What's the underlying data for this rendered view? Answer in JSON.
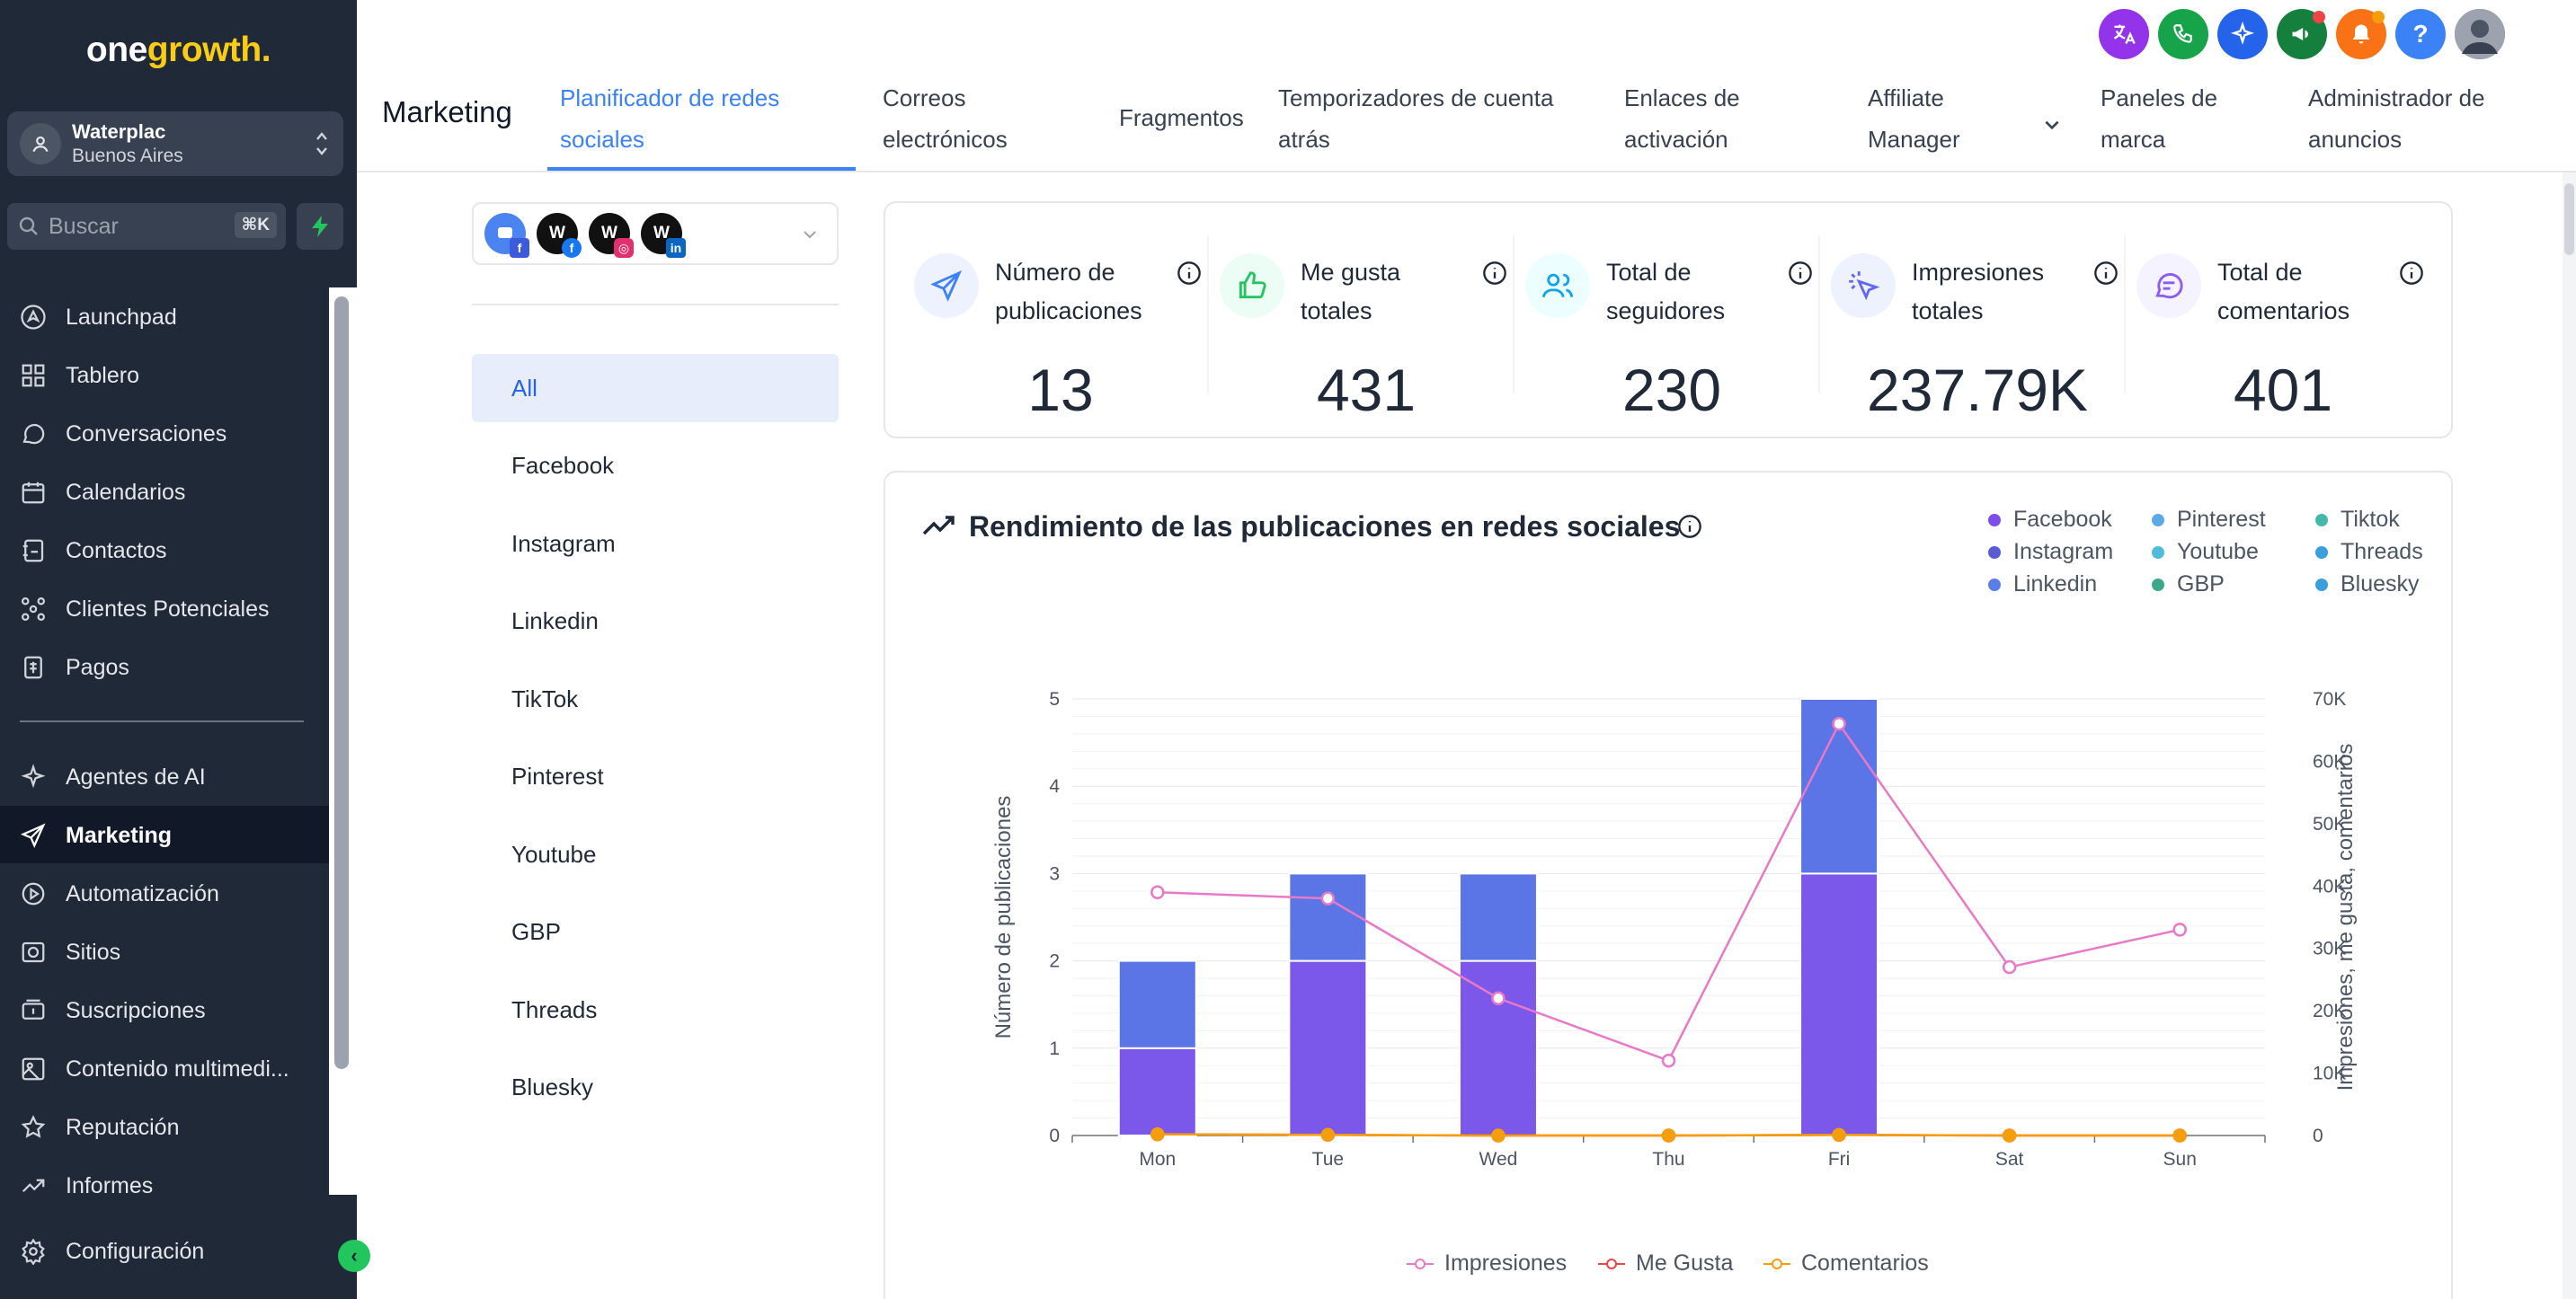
{
  "brand": {
    "part1": "one",
    "part2": "growth."
  },
  "account": {
    "name": "Waterplac",
    "location": "Buenos Aires"
  },
  "search": {
    "placeholder": "Buscar",
    "shortcut": "⌘K"
  },
  "nav": {
    "items": [
      {
        "label": "Launchpad",
        "icon": "rocket-icon"
      },
      {
        "label": "Tablero",
        "icon": "grid-icon"
      },
      {
        "label": "Conversaciones",
        "icon": "chat-icon"
      },
      {
        "label": "Calendarios",
        "icon": "calendar-icon"
      },
      {
        "label": "Contactos",
        "icon": "contacts-icon"
      },
      {
        "label": "Clientes Potenciales",
        "icon": "pipeline-icon"
      },
      {
        "label": "Pagos",
        "icon": "payments-icon"
      }
    ],
    "items2": [
      {
        "label": "Agentes de AI",
        "icon": "sparkle-icon"
      },
      {
        "label": "Marketing",
        "icon": "send-icon",
        "active": true
      },
      {
        "label": "Automatización",
        "icon": "automation-icon"
      },
      {
        "label": "Sitios",
        "icon": "sites-icon"
      },
      {
        "label": "Suscripciones",
        "icon": "subscriptions-icon"
      },
      {
        "label": "Contenido multimedi...",
        "icon": "media-icon"
      },
      {
        "label": "Reputación",
        "icon": "star-icon"
      },
      {
        "label": "Informes",
        "icon": "trend-icon"
      }
    ],
    "settings": "Configuración"
  },
  "header": {
    "title": "Marketing",
    "tabs": [
      {
        "line1": "Planificador de redes",
        "line2": "sociales",
        "active": true
      },
      {
        "line1": "Correos",
        "line2": "electrónicos"
      },
      {
        "line1": "Fragmentos",
        "line2": ""
      },
      {
        "line1": "Temporizadores de cuenta",
        "line2": "atrás"
      },
      {
        "line1": "Enlaces de",
        "line2": "activación"
      },
      {
        "line1": "Affiliate",
        "line2": "Manager"
      },
      {
        "line1": "Paneles de",
        "line2": "marca"
      },
      {
        "line1": "Administrador de",
        "line2": "anuncios"
      }
    ]
  },
  "accounts_selector": {
    "avatar_letter": "W"
  },
  "filters": [
    "All",
    "Facebook",
    "Instagram",
    "Linkedin",
    "TikTok",
    "Pinterest",
    "Youtube",
    "GBP",
    "Threads",
    "Bluesky"
  ],
  "stats": [
    {
      "label": "Número de publicaciones",
      "value": "13",
      "color": "#3b82f6"
    },
    {
      "label": "Me gusta totales",
      "value": "431",
      "color": "#22c55e"
    },
    {
      "label": "Total de seguidores",
      "value": "230",
      "color": "#0ea5e9"
    },
    {
      "label": "Impresiones totales",
      "value": "237.79K",
      "color": "#6366f1"
    },
    {
      "label": "Total de comentarios",
      "value": "401",
      "color": "#8b5cf6"
    }
  ],
  "chart_title": "Rendimiento de las publicaciones en redes sociales",
  "chart_data": {
    "type": "bar",
    "categories": [
      "Mon",
      "Tue",
      "Wed",
      "Thu",
      "Fri",
      "Sat",
      "Sun"
    ],
    "ylabel": "Número de publicaciones",
    "ylabel_right": "Impresiones, me gusta, comentarios",
    "ylim": [
      0,
      5
    ],
    "ylim_right": [
      0,
      70000
    ],
    "yticks": [
      "0",
      "1",
      "2",
      "3",
      "4",
      "5"
    ],
    "yticks_right": [
      "0",
      "10K",
      "20K",
      "30K",
      "40K",
      "50K",
      "60K",
      "70K"
    ],
    "legend": [
      {
        "name": "Facebook",
        "color": "#7c4dea"
      },
      {
        "name": "Pinterest",
        "color": "#5aa9e6"
      },
      {
        "name": "Tiktok",
        "color": "#45b8ac"
      },
      {
        "name": "Instagram",
        "color": "#5b5bd6"
      },
      {
        "name": "Youtube",
        "color": "#4fbdd8"
      },
      {
        "name": "Threads",
        "color": "#3b9edd"
      },
      {
        "name": "Linkedin",
        "color": "#5b7de8"
      },
      {
        "name": "GBP",
        "color": "#3aa88a"
      },
      {
        "name": "Bluesky",
        "color": "#3b9edd"
      }
    ],
    "series": [
      {
        "name": "Facebook",
        "type": "bar",
        "color": "#7b57ea",
        "values": [
          1,
          2,
          2,
          0,
          3,
          0,
          0
        ]
      },
      {
        "name": "Linkedin",
        "type": "bar",
        "color": "#5b74e6",
        "values": [
          1,
          1,
          1,
          0,
          2,
          0,
          0
        ]
      },
      {
        "name": "Impresiones",
        "type": "line",
        "color": "#e879c6",
        "values": [
          39000,
          38000,
          22000,
          12000,
          66000,
          27000,
          33000
        ]
      },
      {
        "name": "Me Gusta",
        "type": "line",
        "color": "#ef4444",
        "values": [
          200,
          100,
          0,
          0,
          100,
          0,
          0
        ]
      },
      {
        "name": "Comentarios",
        "type": "line",
        "color": "#f59e0b",
        "values": [
          200,
          100,
          0,
          0,
          100,
          0,
          0
        ]
      }
    ]
  }
}
